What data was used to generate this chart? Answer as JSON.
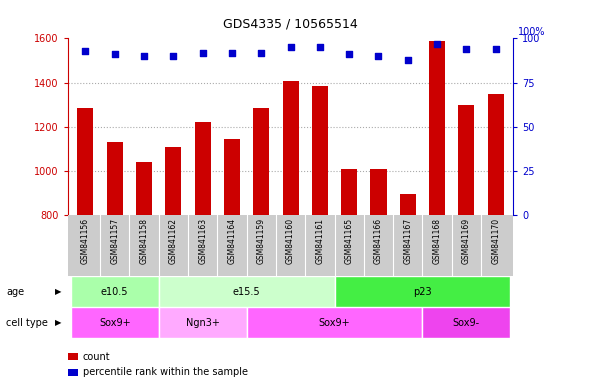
{
  "title": "GDS4335 / 10565514",
  "samples": [
    "GSM841156",
    "GSM841157",
    "GSM841158",
    "GSM841162",
    "GSM841163",
    "GSM841164",
    "GSM841159",
    "GSM841160",
    "GSM841161",
    "GSM841165",
    "GSM841166",
    "GSM841167",
    "GSM841168",
    "GSM841169",
    "GSM841170"
  ],
  "counts": [
    1285,
    1130,
    1040,
    1110,
    1220,
    1145,
    1285,
    1405,
    1385,
    1010,
    1010,
    895,
    1590,
    1300,
    1350
  ],
  "percentiles": [
    93,
    91,
    90,
    90,
    92,
    92,
    92,
    95,
    95,
    91,
    90,
    88,
    97,
    94,
    94
  ],
  "ylim_left": [
    800,
    1600
  ],
  "ylim_right": [
    0,
    100
  ],
  "yticks_left": [
    800,
    1000,
    1200,
    1400,
    1600
  ],
  "yticks_right": [
    0,
    25,
    50,
    75,
    100
  ],
  "bar_color": "#cc0000",
  "dot_color": "#0000cc",
  "grid_color": "#aaaaaa",
  "age_groups": [
    {
      "label": "e10.5",
      "start": 0,
      "end": 3,
      "color": "#aaffaa"
    },
    {
      "label": "e15.5",
      "start": 3,
      "end": 9,
      "color": "#ccffcc"
    },
    {
      "label": "p23",
      "start": 9,
      "end": 15,
      "color": "#44ee44"
    }
  ],
  "cell_type_groups": [
    {
      "label": "Sox9+",
      "start": 0,
      "end": 3,
      "color": "#ff66ff"
    },
    {
      "label": "Ngn3+",
      "start": 3,
      "end": 6,
      "color": "#ffaaff"
    },
    {
      "label": "Sox9+",
      "start": 6,
      "end": 12,
      "color": "#ff66ff"
    },
    {
      "label": "Sox9-",
      "start": 12,
      "end": 15,
      "color": "#ee44ee"
    }
  ],
  "bar_color_legend": "#cc0000",
  "dot_color_legend": "#0000cc",
  "bg_color": "#ffffff",
  "xtick_bg_color": "#cccccc"
}
